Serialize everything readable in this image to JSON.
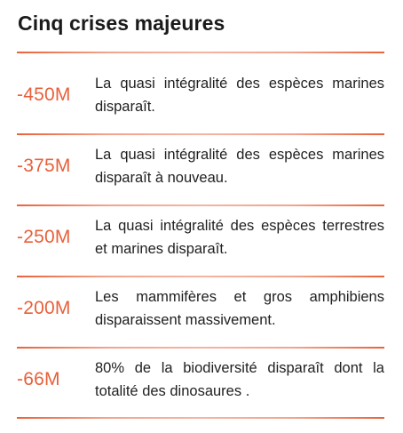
{
  "title": "Cinq crises majeures",
  "colors": {
    "accent": "#e8603a",
    "text": "#1f1f1f",
    "title": "#1a1a1a",
    "background": "#ffffff"
  },
  "crises": [
    {
      "date": "-450M",
      "description": "La quasi intégralité des espèces marines disparaît."
    },
    {
      "date": "-375M",
      "description": "La quasi intégralité des espèces marines disparaît à nouveau."
    },
    {
      "date": "-250M",
      "description": "La quasi intégralité des espèces terrestres et marines disparaît."
    },
    {
      "date": "-200M",
      "description": "Les mammifères et gros amphibiens disparaissent massivement."
    },
    {
      "date": "-66M",
      "description": "80% de la biodiversité disparaît dont la totalité des dinosaures ."
    }
  ]
}
